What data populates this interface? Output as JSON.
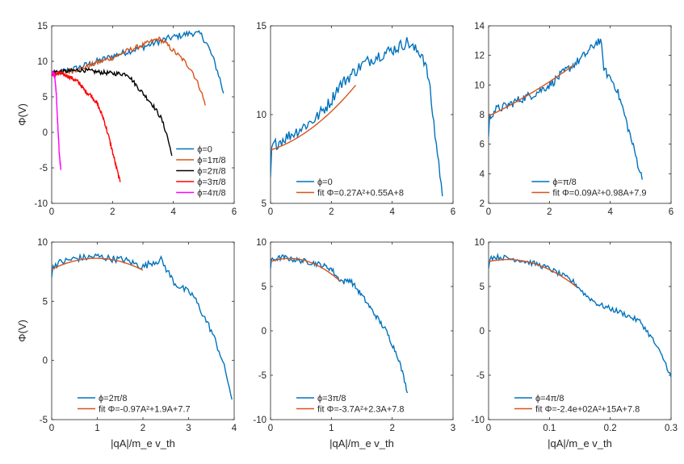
{
  "figure": {
    "xlabel": "|qA|/m_e v_th",
    "ylabel": "Φ(V)"
  },
  "chart_data": [
    {
      "type": "line",
      "panel": "top-left",
      "xlim": [
        0,
        6
      ],
      "ylim": [
        -10,
        15
      ],
      "xticks": [
        0,
        2,
        4,
        6
      ],
      "xtick_labels": [
        "0",
        "2",
        "4",
        "6"
      ],
      "yticks": [
        -10,
        -5,
        0,
        5,
        10,
        15
      ],
      "ytick_labels": [
        "-10",
        "-5",
        "0",
        "5",
        "10",
        "15"
      ],
      "show_xlabel": false,
      "show_ylabel": true,
      "legend_position": "bottom-right",
      "series": [
        {
          "name": "ϕ=0",
          "color": "#0072BD",
          "noise": 0.45,
          "x": [
            0,
            0.3,
            0.8,
            1.5,
            2.2,
            3.0,
            3.8,
            4.3,
            4.6,
            4.9,
            5.1,
            5.3,
            5.5,
            5.65
          ],
          "y": [
            8.0,
            8.5,
            9.0,
            10.0,
            11.0,
            12.0,
            13.2,
            13.7,
            14.0,
            13.8,
            12.5,
            10.5,
            8.0,
            5.5
          ]
        },
        {
          "name": "ϕ=1π/8",
          "color": "#D95319",
          "noise": 0.35,
          "x": [
            0,
            0.5,
            1.0,
            1.5,
            2.0,
            2.5,
            3.0,
            3.3,
            3.5,
            3.7,
            4.0,
            4.3,
            4.6,
            4.9,
            5.05
          ],
          "y": [
            8.2,
            8.5,
            9.0,
            9.8,
            10.5,
            11.5,
            12.3,
            12.8,
            13.2,
            12.7,
            11.5,
            10.3,
            8.8,
            6.0,
            3.8
          ]
        },
        {
          "name": "ϕ=2π/8",
          "color": "#000000",
          "noise": 0.3,
          "x": [
            0,
            0.5,
            1.0,
            1.5,
            2.0,
            2.5,
            2.8,
            3.1,
            3.3,
            3.6,
            3.8,
            3.95
          ],
          "y": [
            8.5,
            8.6,
            8.8,
            8.5,
            8.3,
            8.2,
            6.5,
            5.0,
            4.0,
            2.0,
            -0.5,
            -3.3
          ]
        },
        {
          "name": "ϕ=3π/8",
          "color": "#FF0000",
          "noise": 0.3,
          "x": [
            0,
            0.3,
            0.6,
            0.9,
            1.1,
            1.3,
            1.5,
            1.7,
            1.9,
            2.1,
            2.25
          ],
          "y": [
            8.2,
            8.3,
            7.8,
            7.0,
            5.8,
            5.2,
            4.0,
            2.0,
            -1.0,
            -4.5,
            -7.0
          ]
        },
        {
          "name": "ϕ=4π/8",
          "color": "#FF00FF",
          "noise": 0.3,
          "x": [
            0,
            0.05,
            0.1,
            0.15,
            0.2,
            0.25,
            0.3
          ],
          "y": [
            8.5,
            8.3,
            7.8,
            5.5,
            1.0,
            -3.0,
            -5.3
          ]
        }
      ]
    },
    {
      "type": "line",
      "panel": "top-middle",
      "xlim": [
        0,
        6
      ],
      "ylim": [
        5,
        15
      ],
      "xticks": [
        0,
        2,
        4,
        6
      ],
      "xtick_labels": [
        "0",
        "2",
        "4",
        "6"
      ],
      "yticks": [
        5,
        10,
        15
      ],
      "ytick_labels": [
        "5",
        "10",
        "15"
      ],
      "show_xlabel": false,
      "show_ylabel": false,
      "legend_position": "bottom-left",
      "series": [
        {
          "name": "ϕ=0",
          "color": "#0072BD",
          "noise": 0.35,
          "x": [
            0,
            0.05,
            0.3,
            0.8,
            1.5,
            2.0,
            2.2,
            2.5,
            3.0,
            3.5,
            3.8,
            4.2,
            4.5,
            4.7,
            5.0,
            5.2,
            5.4,
            5.55,
            5.65
          ],
          "y": [
            6.5,
            8.2,
            8.5,
            9.0,
            9.8,
            10.8,
            11.5,
            12.0,
            12.8,
            13.3,
            13.5,
            13.8,
            14.1,
            13.7,
            13.4,
            12.0,
            9.0,
            7.0,
            5.4
          ]
        },
        {
          "name": "fit Φ=0.27A²+0.55A+8",
          "color": "#D95319",
          "noise": 0,
          "fit": [
            0.27,
            0.55,
            8
          ],
          "fit_range": [
            0,
            2.8
          ]
        }
      ]
    },
    {
      "type": "line",
      "panel": "top-right",
      "xlim": [
        0,
        6
      ],
      "ylim": [
        2,
        14
      ],
      "xticks": [
        0,
        2,
        4,
        6
      ],
      "xtick_labels": [
        "0",
        "2",
        "4",
        "6"
      ],
      "yticks": [
        2,
        4,
        6,
        8,
        10,
        12,
        14
      ],
      "ytick_labels": [
        "2",
        "4",
        "6",
        "8",
        "10",
        "12",
        "14"
      ],
      "show_xlabel": false,
      "show_ylabel": false,
      "legend_position": "bottom-right",
      "series": [
        {
          "name": "ϕ=π/8",
          "color": "#0072BD",
          "noise": 0.3,
          "x": [
            0,
            0.03,
            0.2,
            0.6,
            1.0,
            1.5,
            2.0,
            2.5,
            3.0,
            3.3,
            3.6,
            3.7,
            3.8,
            4.0,
            4.2,
            4.4,
            4.6,
            4.8,
            5.0,
            5.05
          ],
          "y": [
            6.5,
            7.8,
            8.3,
            8.6,
            9.0,
            9.4,
            10.0,
            10.9,
            11.7,
            12.3,
            13.0,
            12.8,
            11.0,
            10.5,
            9.8,
            8.5,
            7.0,
            5.5,
            4.0,
            3.6
          ]
        },
        {
          "name": "fit Φ=0.09A²+0.98A+7.9",
          "color": "#D95319",
          "noise": 0,
          "fit": [
            0.09,
            0.98,
            7.9
          ],
          "fit_range": [
            0,
            2.8
          ]
        }
      ]
    },
    {
      "type": "line",
      "panel": "bottom-left",
      "xlim": [
        0,
        4
      ],
      "ylim": [
        -5,
        10
      ],
      "xticks": [
        0,
        1,
        2,
        3,
        4
      ],
      "xtick_labels": [
        "0",
        "1",
        "2",
        "3",
        "4"
      ],
      "yticks": [
        -5,
        0,
        5,
        10
      ],
      "ytick_labels": [
        "-5",
        "0",
        "5",
        "10"
      ],
      "show_xlabel": true,
      "show_ylabel": true,
      "legend_position": "bottom-left",
      "series": [
        {
          "name": "ϕ=2π/8",
          "color": "#0072BD",
          "noise": 0.3,
          "x": [
            0,
            0.02,
            0.2,
            0.5,
            0.8,
            1.0,
            1.3,
            1.6,
            2.0,
            2.2,
            2.4,
            2.5,
            2.7,
            2.9,
            3.1,
            3.3,
            3.5,
            3.7,
            3.85,
            3.95
          ],
          "y": [
            7.0,
            8.0,
            8.3,
            8.6,
            8.7,
            8.8,
            8.6,
            8.5,
            7.9,
            8.3,
            8.5,
            7.8,
            6.5,
            6.0,
            5.5,
            4.0,
            2.5,
            0.5,
            -1.5,
            -3.3
          ]
        },
        {
          "name": "fit Φ=-0.97A²+1.9A+7.7",
          "color": "#D95319",
          "noise": 0,
          "fit": [
            -0.97,
            1.9,
            7.7
          ],
          "fit_range": [
            0,
            2.0
          ]
        }
      ]
    },
    {
      "type": "line",
      "panel": "bottom-middle",
      "xlim": [
        0,
        3
      ],
      "ylim": [
        -10,
        10
      ],
      "xticks": [
        0,
        1,
        2,
        3
      ],
      "xtick_labels": [
        "0",
        "1",
        "2",
        "3"
      ],
      "yticks": [
        -10,
        -5,
        0,
        5,
        10
      ],
      "ytick_labels": [
        "-10",
        "-5",
        "0",
        "5",
        "10"
      ],
      "show_xlabel": true,
      "show_ylabel": false,
      "legend_position": "bottom-left",
      "series": [
        {
          "name": "ϕ=3π/8",
          "color": "#0072BD",
          "noise": 0.3,
          "x": [
            0,
            0.02,
            0.2,
            0.4,
            0.6,
            0.8,
            1.0,
            1.1,
            1.2,
            1.3,
            1.5,
            1.7,
            1.9,
            2.0,
            2.1,
            2.2,
            2.25
          ],
          "y": [
            7.0,
            8.0,
            8.3,
            8.0,
            7.8,
            7.5,
            7.0,
            6.0,
            5.5,
            5.8,
            4.0,
            2.0,
            0.0,
            -1.5,
            -3.0,
            -5.5,
            -7.0
          ]
        },
        {
          "name": "fit Φ=-3.7A²+2.3A+7.8",
          "color": "#D95319",
          "noise": 0,
          "fit": [
            -3.7,
            2.3,
            7.8
          ],
          "fit_range": [
            0,
            1.15
          ]
        }
      ]
    },
    {
      "type": "line",
      "panel": "bottom-right",
      "xlim": [
        0,
        0.3
      ],
      "ylim": [
        -10,
        10
      ],
      "xticks": [
        0,
        0.1,
        0.2,
        0.3
      ],
      "xtick_labels": [
        "0",
        "0.1",
        "0.2",
        "0.3"
      ],
      "yticks": [
        -10,
        -5,
        0,
        5,
        10
      ],
      "ytick_labels": [
        "-10",
        "-5",
        "0",
        "5",
        "10"
      ],
      "show_xlabel": true,
      "show_ylabel": false,
      "legend_position": "bottom-left",
      "series": [
        {
          "name": "ϕ=4π/8",
          "color": "#0072BD",
          "noise": 0.3,
          "x": [
            0,
            0.002,
            0.02,
            0.05,
            0.08,
            0.1,
            0.12,
            0.14,
            0.16,
            0.18,
            0.2,
            0.22,
            0.25,
            0.27,
            0.29,
            0.3
          ],
          "y": [
            7.0,
            8.3,
            8.3,
            8.0,
            7.5,
            7.0,
            6.3,
            5.5,
            4.0,
            3.0,
            2.5,
            2.0,
            1.0,
            -1.0,
            -3.5,
            -5.2
          ]
        },
        {
          "name": "fit Φ=-2.4e+02A²+15A+7.8",
          "color": "#D95319",
          "noise": 0,
          "fit": [
            -240,
            15,
            7.8
          ],
          "fit_range": [
            0,
            0.145
          ]
        }
      ]
    }
  ]
}
